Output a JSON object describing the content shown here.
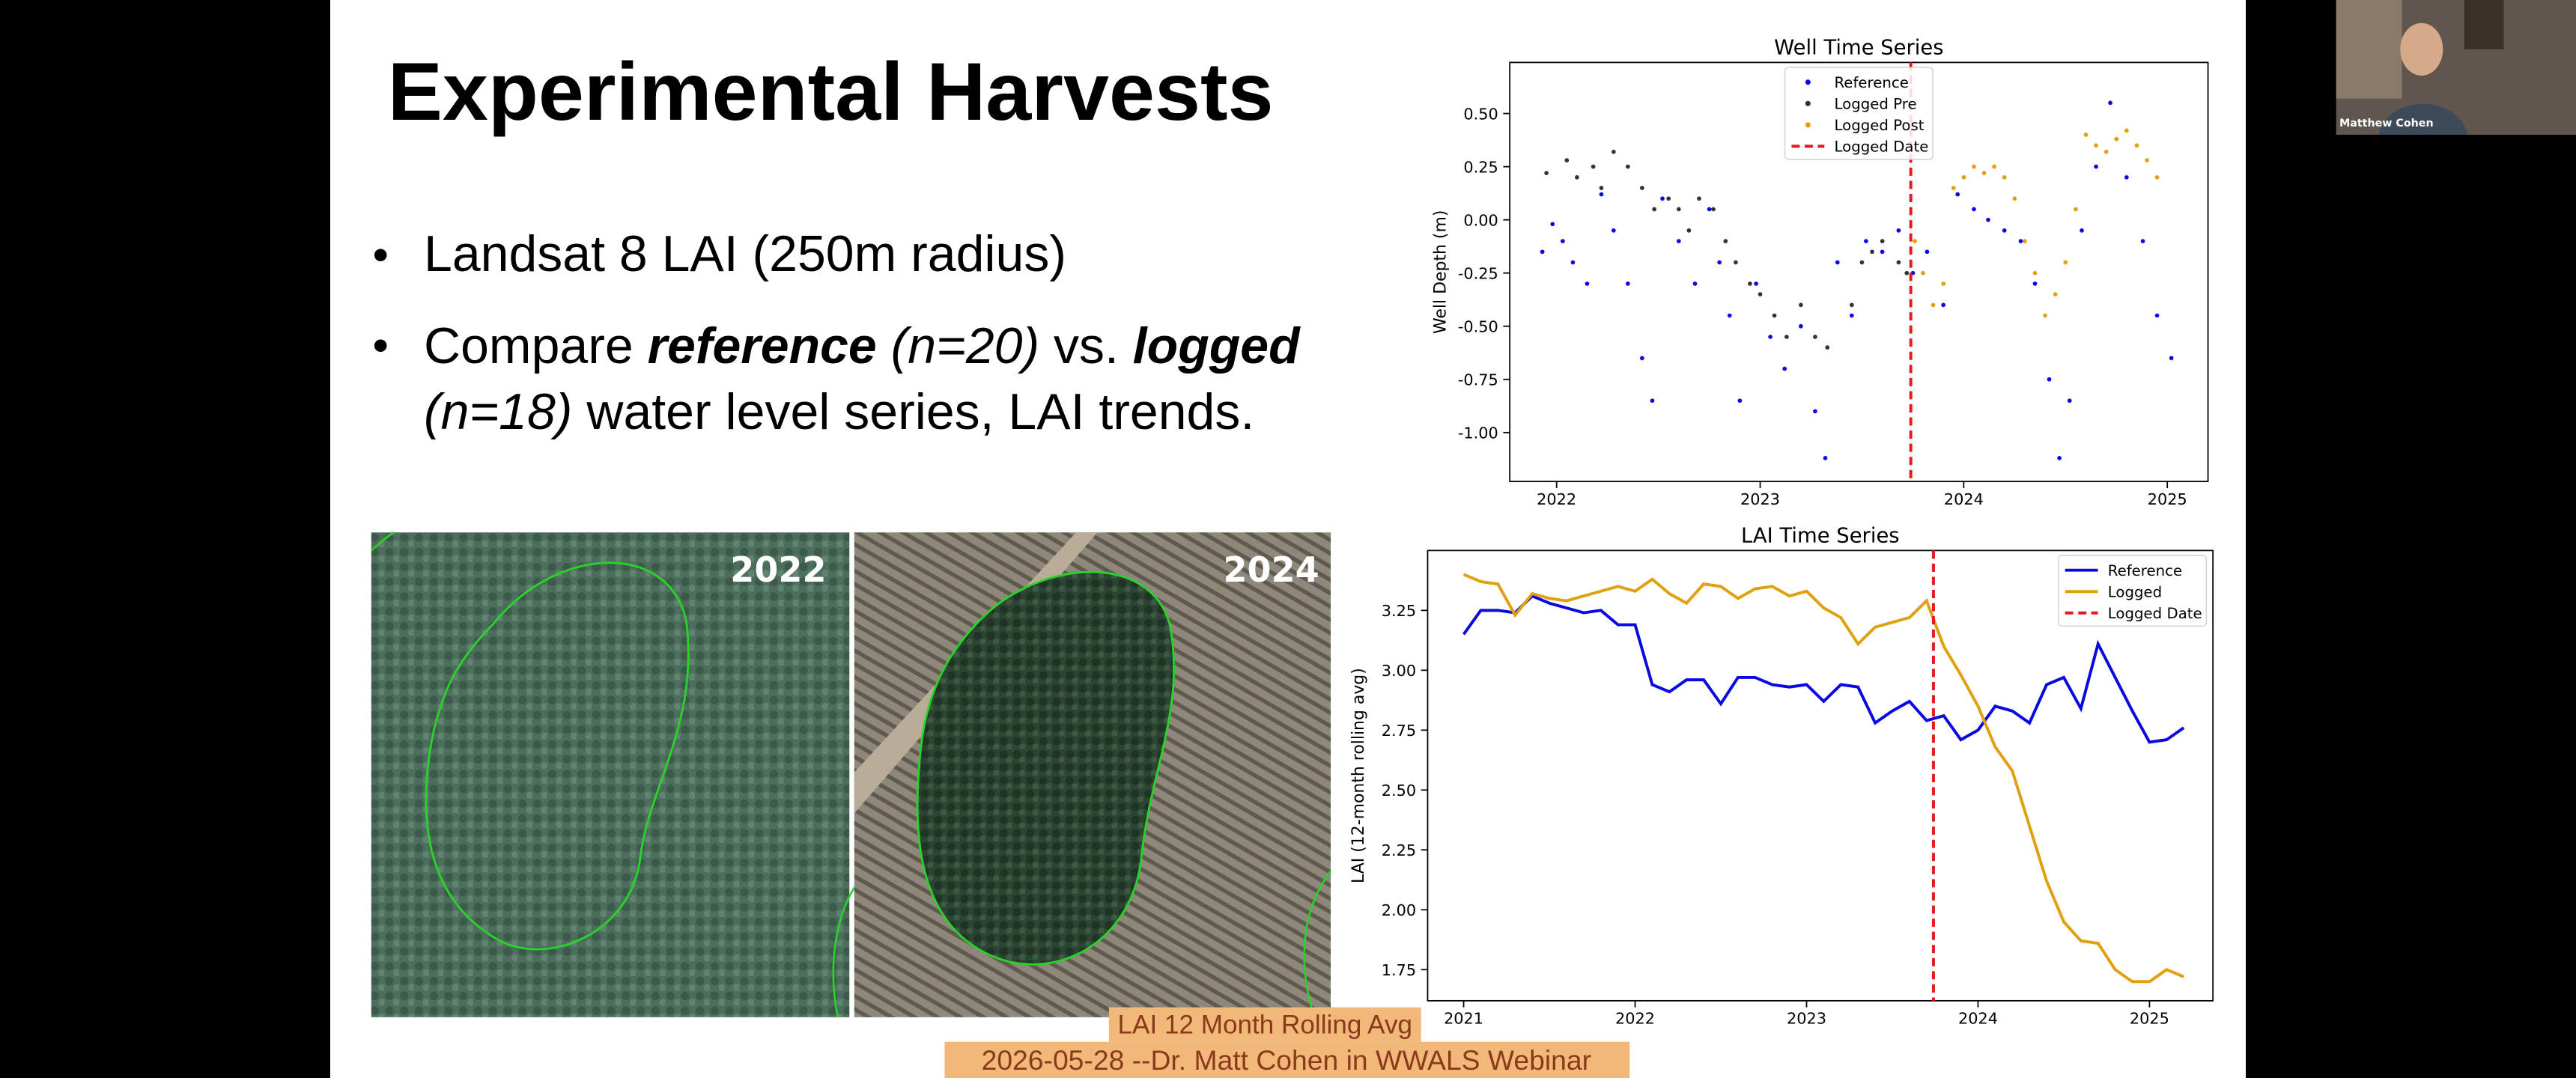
{
  "slide": {
    "title": "Experimental Harvests",
    "bullets": [
      {
        "lines": [
          [
            {
              "text": "Landsat 8 LAI (250m radius)",
              "style": "normal"
            }
          ]
        ]
      },
      {
        "lines": [
          [
            {
              "text": "Compare ",
              "style": "normal"
            },
            {
              "text": "reference",
              "style": "bold-italic"
            },
            {
              "text": " (n=20)",
              "style": "italic"
            },
            {
              "text": " vs. ",
              "style": "normal"
            },
            {
              "text": "logged",
              "style": "bold-italic"
            }
          ],
          [
            {
              "text": "(n=18)",
              "style": "italic"
            },
            {
              "text": " water level series, LAI trends.",
              "style": "normal"
            }
          ]
        ]
      }
    ]
  },
  "photos": [
    {
      "label": "2022"
    },
    {
      "label": "2024"
    }
  ],
  "captions": [
    "LAI 12 Month Rolling Avg",
    "2026-05-28 --Dr. Matt Cohen in WWALS Webinar"
  ],
  "participant": {
    "name": "Matthew Cohen"
  },
  "chart_data": [
    {
      "type": "scatter",
      "title": "Well Time Series",
      "ylabel": "Well Depth (m)",
      "xlim": [
        2021.77,
        2025.2
      ],
      "ylim": [
        -1.23,
        0.74
      ],
      "xticks": [
        2022,
        2023,
        2024,
        2025
      ],
      "yticks": [
        {
          "value": 0.5,
          "label": "0.50"
        },
        0.25,
        {
          "value": 0,
          "label": "0.00"
        },
        -0.25,
        {
          "value": -0.5,
          "label": "-0.50"
        },
        -0.75,
        {
          "value": -1,
          "label": "-1.00"
        }
      ],
      "legend": "upper center",
      "series": [
        {
          "name": "Reference",
          "color": "#0a0ae0",
          "x": [
            2021.93,
            2021.98,
            2022.03,
            2022.08,
            2022.15,
            2022.22,
            2022.28,
            2022.35,
            2022.42,
            2022.47,
            2022.52,
            2022.6,
            2022.68,
            2022.75,
            2022.8,
            2022.85,
            2022.9,
            2022.98,
            2023.05,
            2023.12,
            2023.2,
            2023.27,
            2023.32,
            2023.38,
            2023.45,
            2023.52,
            2023.6,
            2023.68,
            2023.75,
            2023.82,
            2023.9,
            2023.97,
            2024.05,
            2024.12,
            2024.2,
            2024.28,
            2024.35,
            2024.42,
            2024.47,
            2024.52,
            2024.58,
            2024.65,
            2024.72,
            2024.8,
            2024.88,
            2024.95,
            2025.02
          ],
          "values": [
            -0.15,
            -0.02,
            -0.1,
            -0.2,
            -0.3,
            0.12,
            -0.05,
            -0.3,
            -0.65,
            -0.85,
            0.1,
            -0.1,
            -0.3,
            0.05,
            -0.2,
            -0.45,
            -0.85,
            -0.3,
            -0.55,
            -0.7,
            -0.5,
            -0.9,
            -1.12,
            -0.2,
            -0.45,
            -0.1,
            -0.15,
            -0.05,
            -0.25,
            -0.15,
            -0.4,
            0.12,
            0.05,
            0.0,
            -0.05,
            -0.1,
            -0.3,
            -0.75,
            -1.12,
            -0.85,
            -0.05,
            0.25,
            0.55,
            0.2,
            -0.1,
            -0.45,
            -0.65
          ]
        },
        {
          "name": "Logged Pre",
          "color": "#333333",
          "x": [
            2021.95,
            2022.05,
            2022.1,
            2022.18,
            2022.22,
            2022.28,
            2022.35,
            2022.42,
            2022.48,
            2022.55,
            2022.6,
            2022.65,
            2022.7,
            2022.77,
            2022.83,
            2022.88,
            2022.95,
            2023.0,
            2023.07,
            2023.13,
            2023.2,
            2023.27,
            2023.33,
            2023.45,
            2023.5,
            2023.55,
            2023.6,
            2023.68,
            2023.72
          ],
          "values": [
            0.22,
            0.28,
            0.2,
            0.25,
            0.15,
            0.32,
            0.25,
            0.15,
            0.05,
            0.1,
            0.05,
            -0.05,
            0.1,
            0.05,
            -0.1,
            -0.2,
            -0.3,
            -0.35,
            -0.45,
            -0.55,
            -0.4,
            -0.55,
            -0.6,
            -0.4,
            -0.2,
            -0.15,
            -0.1,
            -0.2,
            -0.25
          ]
        },
        {
          "name": "Logged Post",
          "color": "#e0a010",
          "x": [
            2023.76,
            2023.8,
            2023.85,
            2023.9,
            2023.95,
            2024.0,
            2024.05,
            2024.1,
            2024.15,
            2024.2,
            2024.25,
            2024.3,
            2024.35,
            2024.4,
            2024.45,
            2024.5,
            2024.55,
            2024.6,
            2024.65,
            2024.7,
            2024.75,
            2024.8,
            2024.85,
            2024.9,
            2024.95
          ],
          "values": [
            -0.1,
            -0.25,
            -0.4,
            -0.3,
            0.15,
            0.2,
            0.25,
            0.22,
            0.25,
            0.2,
            0.1,
            -0.1,
            -0.25,
            -0.45,
            -0.35,
            -0.2,
            0.05,
            0.4,
            0.35,
            0.32,
            0.38,
            0.42,
            0.35,
            0.28,
            0.2
          ]
        }
      ],
      "vline": {
        "name": "Logged Date",
        "x": 2023.74,
        "color": "#e41a1c"
      }
    },
    {
      "type": "line",
      "title": "LAI Time Series",
      "ylabel": "LAI (12-month rolling avg)",
      "xlim": [
        2020.79,
        2025.37
      ],
      "ylim": [
        1.62,
        3.5
      ],
      "xticks": [
        2021,
        2022,
        2023,
        2024,
        2025
      ],
      "yticks": [
        1.75,
        {
          "value": 2,
          "label": "2.00"
        },
        2.25,
        {
          "value": 2.5,
          "label": "2.50"
        },
        2.75,
        {
          "value": 3,
          "label": "3.00"
        },
        3.25
      ],
      "legend": "upper right",
      "x": [
        2021,
        2021.1,
        2021.2,
        2021.3,
        2021.4,
        2021.5,
        2021.6,
        2021.7,
        2021.8,
        2021.9,
        2022,
        2022.1,
        2022.2,
        2022.3,
        2022.4,
        2022.5,
        2022.6,
        2022.7,
        2022.8,
        2022.9,
        2023,
        2023.1,
        2023.2,
        2023.3,
        2023.4,
        2023.5,
        2023.6,
        2023.7,
        2023.8,
        2023.9,
        2024,
        2024.1,
        2024.2,
        2024.3,
        2024.4,
        2024.5,
        2024.6,
        2024.7,
        2024.8,
        2024.9,
        2025,
        2025.1,
        2025.2
      ],
      "series": [
        {
          "name": "Reference",
          "color": "#0a0ae0",
          "values": [
            3.15,
            3.25,
            3.25,
            3.24,
            3.31,
            3.28,
            3.26,
            3.24,
            3.25,
            3.19,
            3.19,
            2.94,
            2.91,
            2.96,
            2.96,
            2.86,
            2.97,
            2.97,
            2.94,
            2.93,
            2.94,
            2.87,
            2.94,
            2.93,
            2.78,
            2.83,
            2.87,
            2.79,
            2.81,
            2.71,
            2.75,
            2.85,
            2.83,
            2.78,
            2.94,
            2.97,
            2.84,
            3.11,
            2.97,
            2.83,
            2.7,
            2.71,
            2.76
          ]
        },
        {
          "name": "Logged",
          "color": "#e0a010",
          "values": [
            3.4,
            3.37,
            3.36,
            3.23,
            3.32,
            3.3,
            3.29,
            3.31,
            3.33,
            3.35,
            3.33,
            3.38,
            3.32,
            3.28,
            3.36,
            3.35,
            3.3,
            3.34,
            3.35,
            3.31,
            3.33,
            3.26,
            3.22,
            3.11,
            3.18,
            3.2,
            3.22,
            3.29,
            3.1,
            2.98,
            2.85,
            2.68,
            2.58,
            2.35,
            2.12,
            1.95,
            1.87,
            1.86,
            1.75,
            1.7,
            1.7,
            1.75,
            1.72
          ]
        }
      ],
      "vline": {
        "name": "Logged Date",
        "x": 2023.74,
        "color": "#e41a1c"
      }
    }
  ]
}
